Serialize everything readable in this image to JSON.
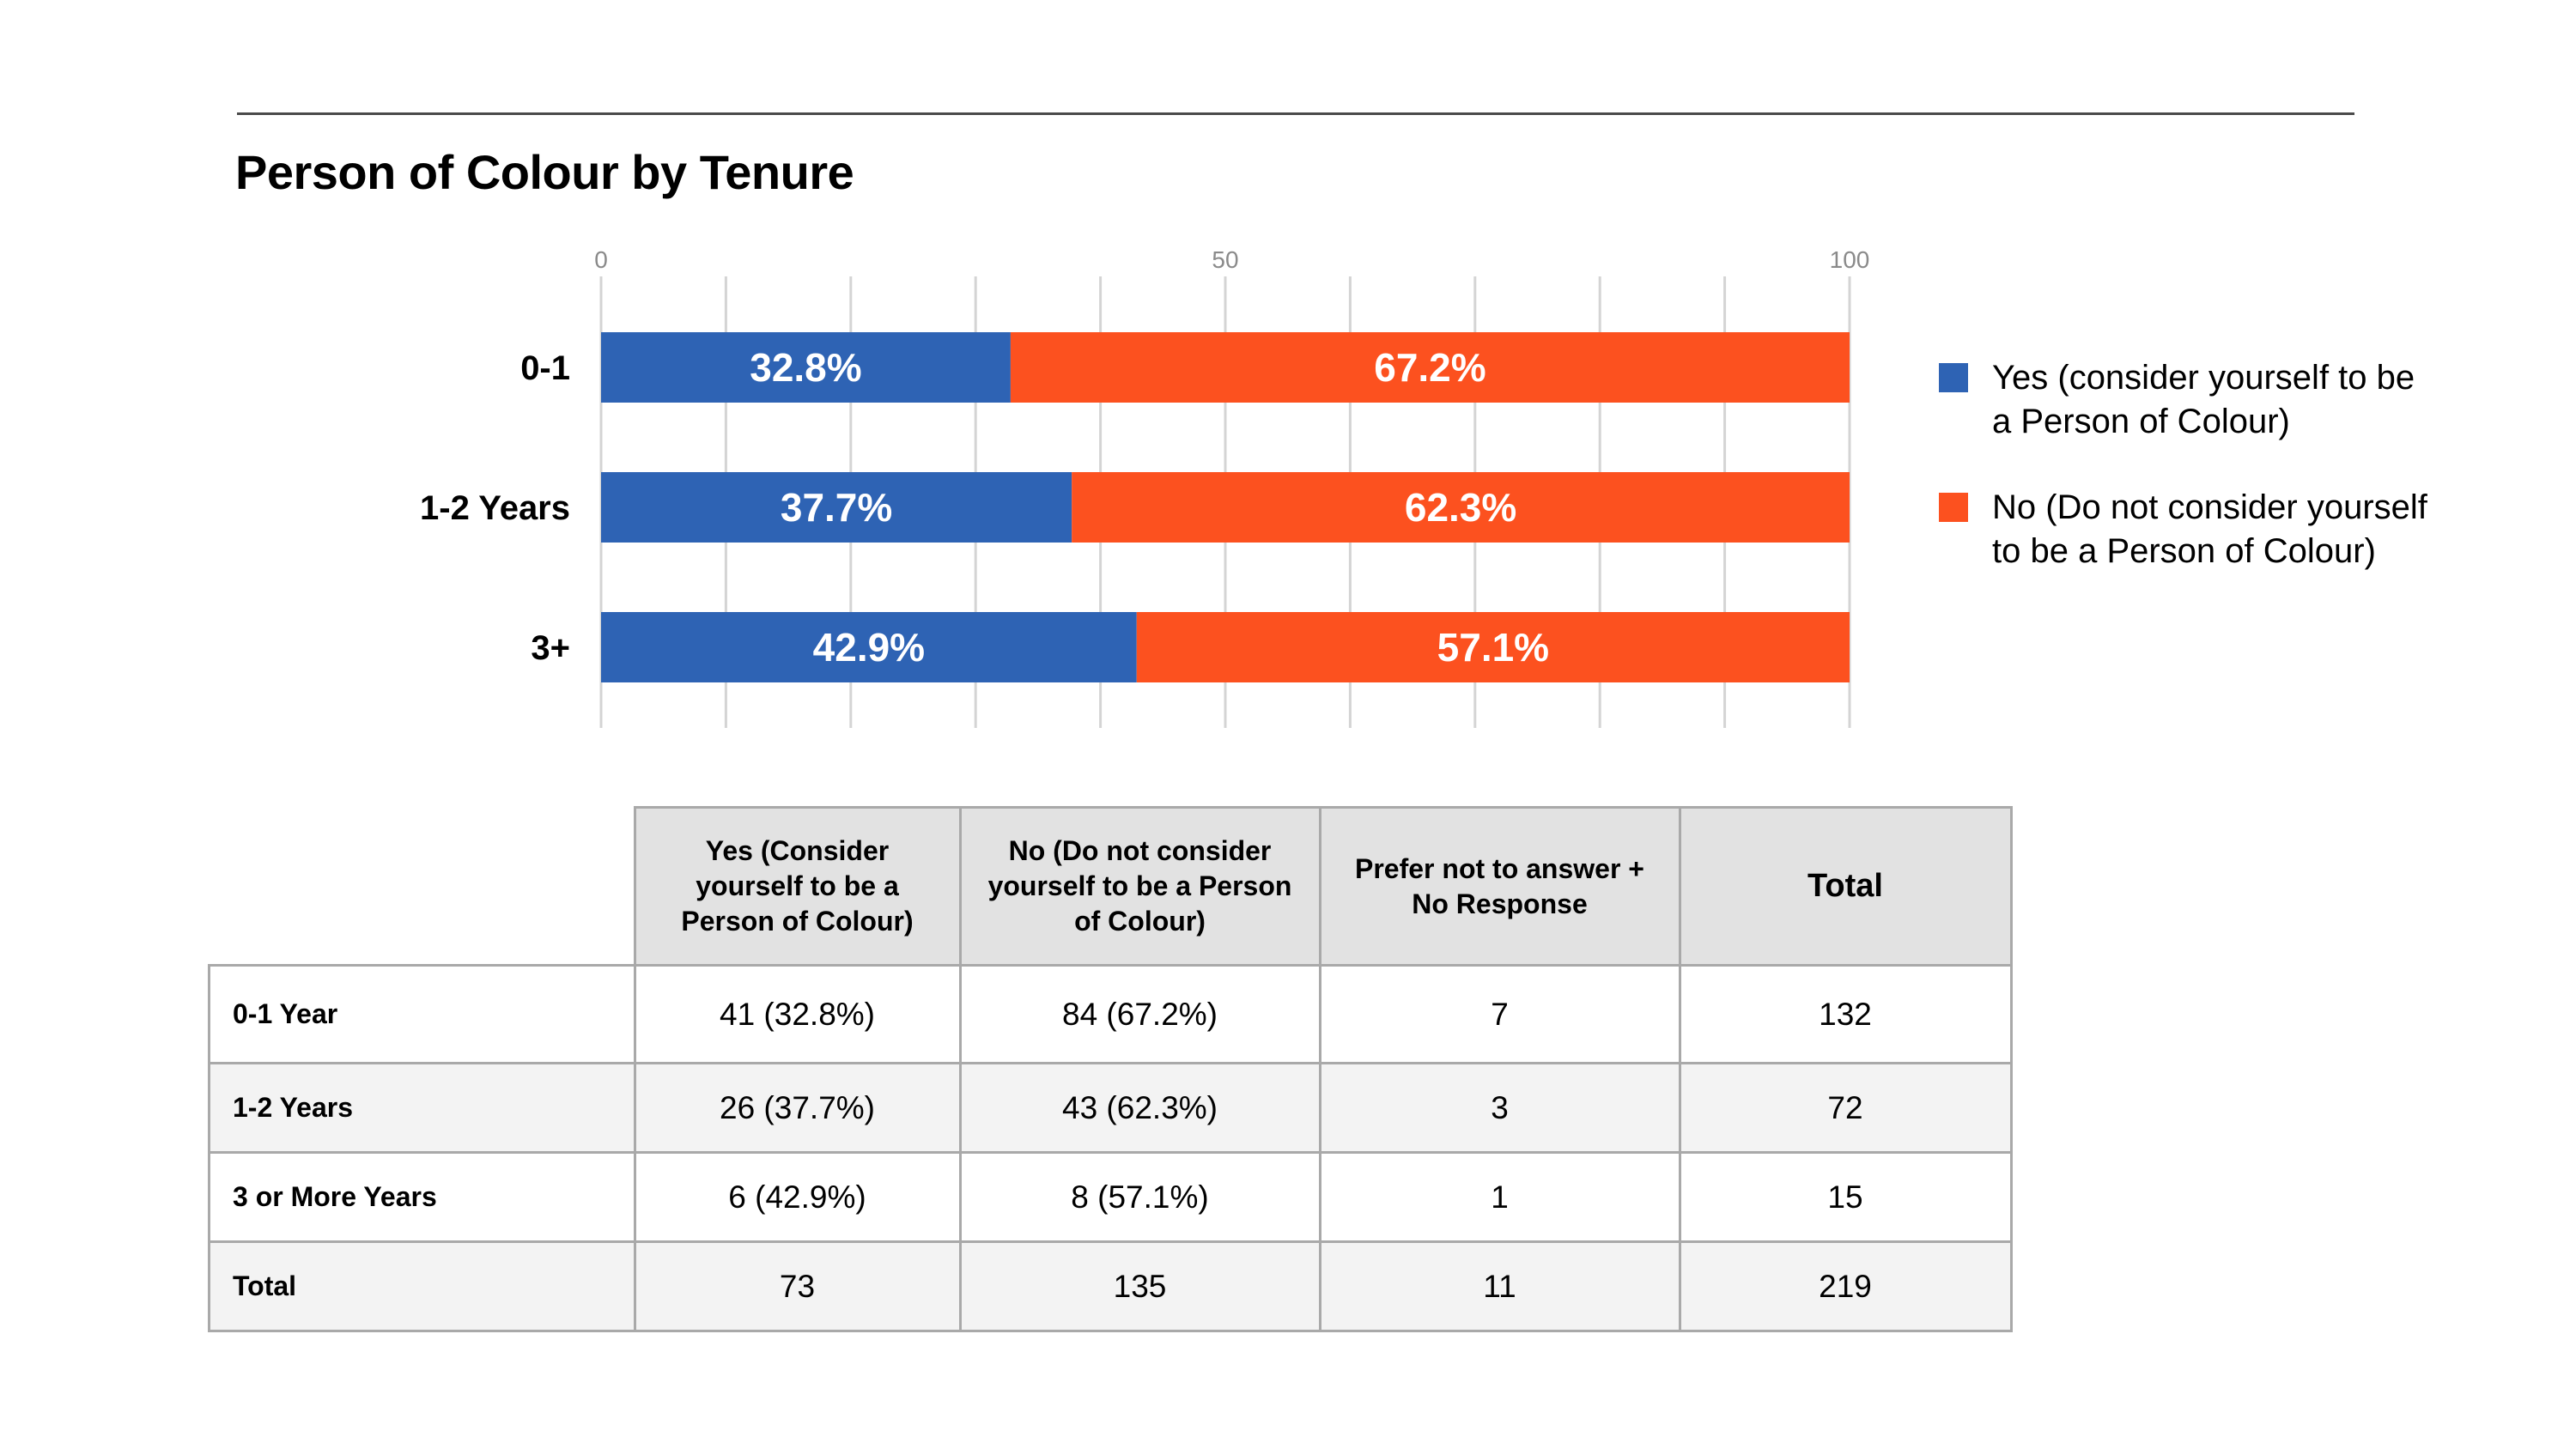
{
  "title": "Person of Colour by Tenure",
  "colors": {
    "yes": "#2e63b4",
    "no": "#fc511f",
    "grid": "#d4d4d4",
    "axis_text": "#8a8a8a"
  },
  "chart_data": {
    "type": "bar",
    "orientation": "horizontal",
    "stacked": true,
    "title": "Person of Colour by Tenure",
    "categories": [
      "0-1",
      "1-2 Years",
      "3+"
    ],
    "series": [
      {
        "name": "Yes (consider yourself to be a Person of Colour)",
        "color": "#2e63b4",
        "values": [
          32.8,
          37.7,
          42.9
        ],
        "labels": [
          "32.8%",
          "37.7%",
          "42.9%"
        ]
      },
      {
        "name": "No (Do not consider yourself to be a Person of Colour)",
        "color": "#fc511f",
        "values": [
          67.2,
          62.3,
          57.1
        ],
        "labels": [
          "67.2%",
          "62.3%",
          "57.1%"
        ]
      }
    ],
    "xlim": [
      0,
      100
    ],
    "xticks": [
      0,
      50,
      100
    ],
    "tick_labels": [
      "0",
      "50",
      "100"
    ],
    "grid_step": 10,
    "legend_position": "right"
  },
  "legend": [
    {
      "label": "Yes (consider yourself to be a Person of Colour)",
      "color": "#2e63b4"
    },
    {
      "label": "No (Do not consider yourself to be a Person of Colour)",
      "color": "#fc511f"
    }
  ],
  "table": {
    "headers": [
      "",
      "Yes (Consider yourself to be a Person of Colour)",
      "No (Do not consider yourself to be a Person of Colour)",
      "Prefer not to answer + No Response",
      "Total"
    ],
    "rows": [
      {
        "label": "0-1 Year",
        "cells": [
          "41 (32.8%)",
          "84 (67.2%)",
          "7",
          "132"
        ]
      },
      {
        "label": "1-2 Years",
        "cells": [
          "26 (37.7%)",
          "43 (62.3%)",
          "3",
          "72"
        ]
      },
      {
        "label": "3 or More Years",
        "cells": [
          "6 (42.9%)",
          "8 (57.1%)",
          "1",
          "15"
        ]
      },
      {
        "label": "Total",
        "cells": [
          "73",
          "135",
          "11",
          "219"
        ]
      }
    ]
  }
}
